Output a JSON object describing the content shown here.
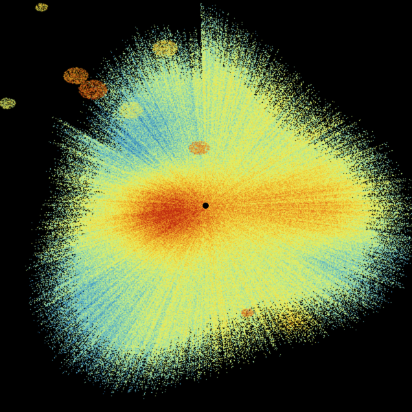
{
  "radar": {
    "background": "#000000",
    "colormap": [
      "#1f5fa8",
      "#4aa3c8",
      "#8fd6b0",
      "#d4f27a",
      "#f2e64a",
      "#f0b22a",
      "#e0701c",
      "#c02a10"
    ],
    "site_marker_color": "#000000"
  }
}
